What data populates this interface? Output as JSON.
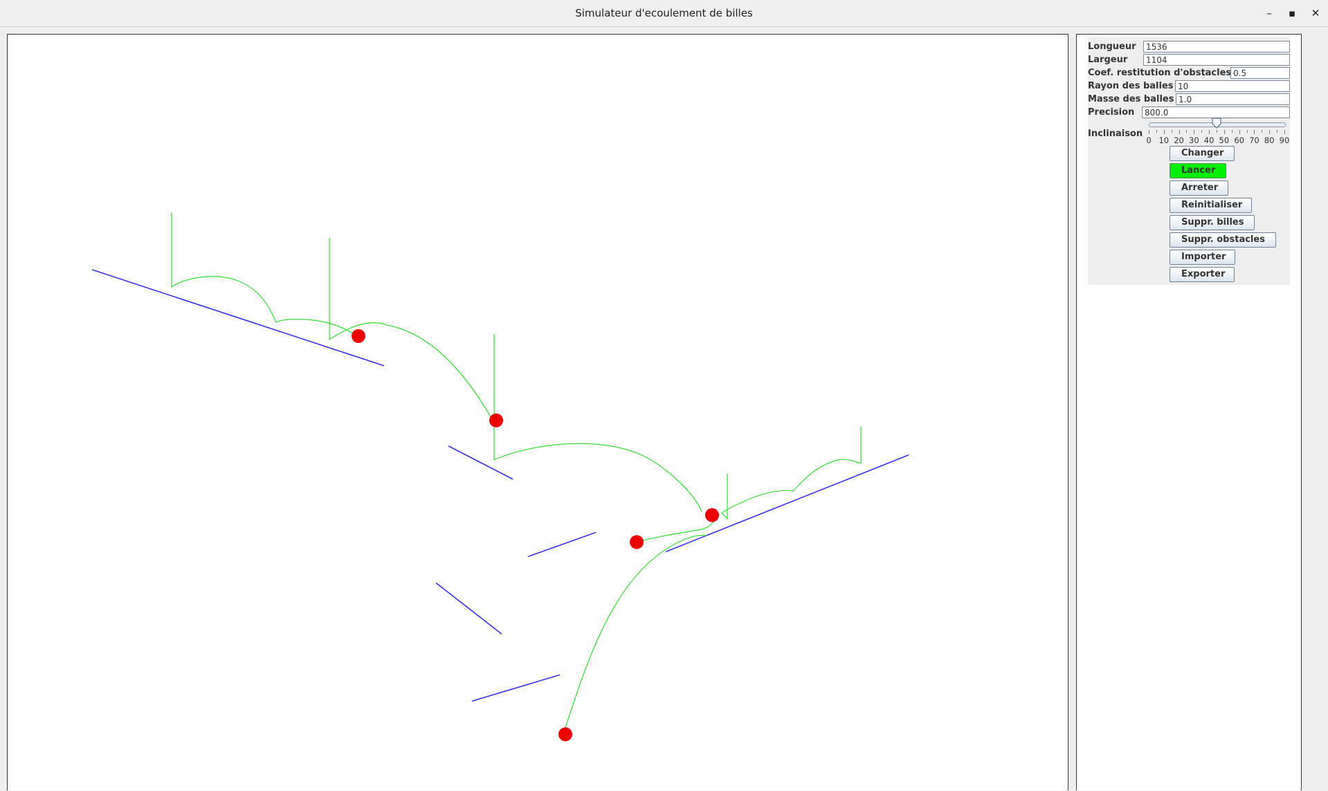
{
  "window": {
    "title": "Simulateur d'ecoulement de billes",
    "minimize_icon": "minimize-icon",
    "maximize_icon": "maximize-icon",
    "close_icon": "close-icon",
    "minimize_glyph": "–",
    "maximize_glyph": "▪",
    "close_glyph": "✕"
  },
  "colors": {
    "obstacle": "#3333ee",
    "trajectory": "#33dd33",
    "ball": "#ee0000",
    "active_button": "#00ee00"
  },
  "controls": {
    "longueur": {
      "label": "Longueur",
      "value": "1536"
    },
    "largeur": {
      "label": "Largeur",
      "value": "1104"
    },
    "restitution": {
      "label": "Coef. restitution d'obstacles",
      "value": "0.5"
    },
    "rayon": {
      "label": "Rayon des balles",
      "value": "10"
    },
    "masse": {
      "label": "Masse des balles",
      "value": "1.0"
    },
    "precision": {
      "label": "Precision",
      "value": "800.0"
    },
    "inclinaison": {
      "label": "Inclinaison",
      "value": 45,
      "min": 0,
      "max": 90,
      "tick_labels": [
        "0",
        "10",
        "20",
        "30",
        "40",
        "50",
        "60",
        "70",
        "80",
        "90"
      ]
    }
  },
  "buttons": {
    "changer": "Changer",
    "lancer": "Lancer",
    "arreter": "Arreter",
    "reinitialiser": "Reinitialiser",
    "suppr_billes": "Suppr. billes",
    "suppr_obstacles": "Suppr. obstacles",
    "importer": "Importer",
    "exporter": "Exporter"
  }
}
